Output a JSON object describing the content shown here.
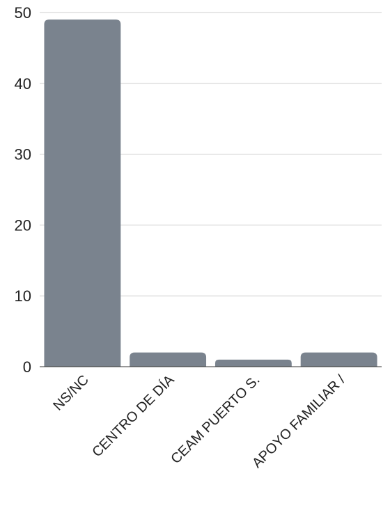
{
  "chart_data": {
    "type": "bar",
    "categories": [
      "NS/NC",
      "CENTRO DE DÍA",
      "CEAM PUERTO S.",
      "APOYO FAMILIAR /"
    ],
    "values": [
      49,
      2,
      1,
      2
    ],
    "ylim": [
      0,
      50
    ],
    "yticks": [
      0,
      10,
      20,
      30,
      40,
      50
    ],
    "grid": true,
    "bar_color": "#7a838e",
    "gridline_color": "#cfcfcf",
    "title": "",
    "xlabel": "",
    "ylabel": ""
  }
}
